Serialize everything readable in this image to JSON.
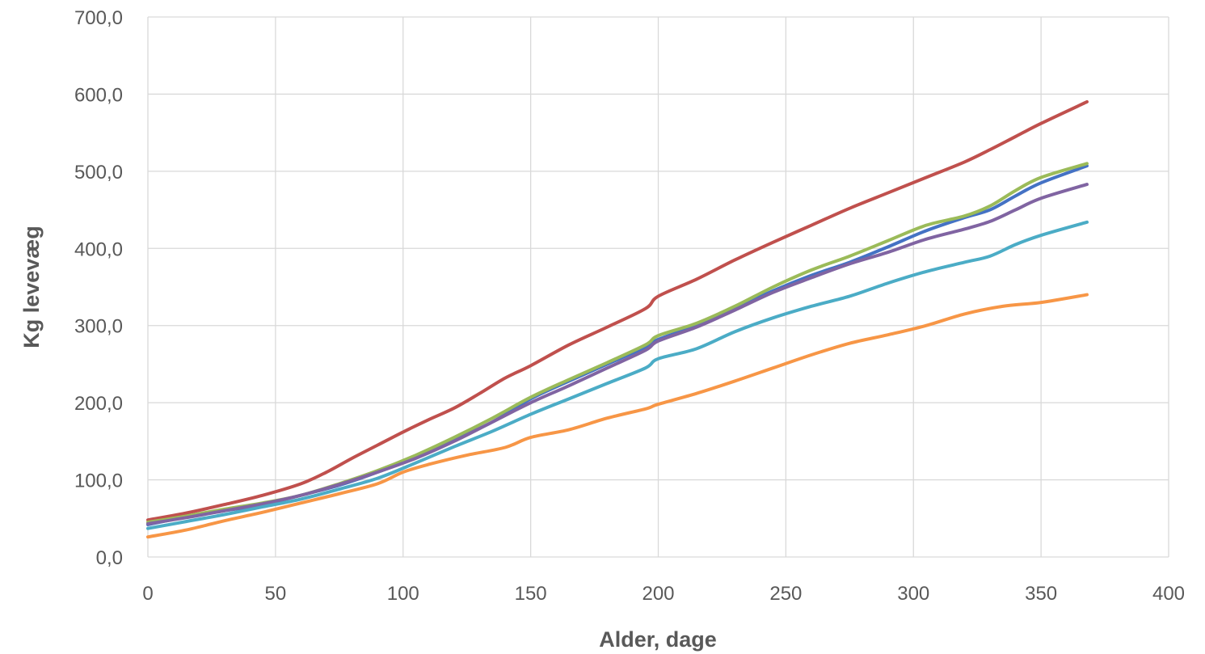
{
  "chart_data": {
    "type": "line",
    "title": "",
    "xlabel": "Alder, dage",
    "ylabel": "Kg levevæg",
    "xlim": [
      0,
      400
    ],
    "ylim": [
      0,
      700
    ],
    "x_ticks": [
      0,
      50,
      100,
      150,
      200,
      250,
      300,
      350,
      400
    ],
    "x_tick_labels": [
      "0",
      "50",
      "100",
      "150",
      "200",
      "250",
      "300",
      "350",
      "400"
    ],
    "y_ticks": [
      0,
      100,
      200,
      300,
      400,
      500,
      600,
      700
    ],
    "y_tick_labels": [
      "0,0",
      "100,0",
      "200,0",
      "300,0",
      "400,0",
      "500,0",
      "600,0",
      "700,0"
    ],
    "grid": true,
    "legend": "none",
    "series": [
      {
        "color": "#4472C4",
        "points": [
          [
            0,
            42
          ],
          [
            15,
            52
          ],
          [
            30,
            60
          ],
          [
            45,
            68
          ],
          [
            60,
            80
          ],
          [
            75,
            93
          ],
          [
            90,
            110
          ],
          [
            105,
            130
          ],
          [
            120,
            152
          ],
          [
            135,
            175
          ],
          [
            150,
            205
          ],
          [
            165,
            228
          ],
          [
            180,
            250
          ],
          [
            195,
            272
          ],
          [
            200,
            282
          ],
          [
            215,
            300
          ],
          [
            230,
            322
          ],
          [
            245,
            345
          ],
          [
            260,
            365
          ],
          [
            275,
            382
          ],
          [
            290,
            402
          ],
          [
            305,
            423
          ],
          [
            320,
            440
          ],
          [
            330,
            450
          ],
          [
            340,
            468
          ],
          [
            350,
            485
          ],
          [
            368,
            507
          ]
        ]
      },
      {
        "color": "#C0504D",
        "points": [
          [
            0,
            48
          ],
          [
            15,
            57
          ],
          [
            30,
            68
          ],
          [
            45,
            80
          ],
          [
            60,
            95
          ],
          [
            70,
            110
          ],
          [
            80,
            128
          ],
          [
            90,
            145
          ],
          [
            100,
            162
          ],
          [
            110,
            178
          ],
          [
            120,
            193
          ],
          [
            130,
            212
          ],
          [
            140,
            232
          ],
          [
            150,
            248
          ],
          [
            165,
            275
          ],
          [
            180,
            298
          ],
          [
            195,
            322
          ],
          [
            200,
            338
          ],
          [
            215,
            360
          ],
          [
            230,
            385
          ],
          [
            245,
            408
          ],
          [
            260,
            430
          ],
          [
            275,
            452
          ],
          [
            290,
            472
          ],
          [
            305,
            492
          ],
          [
            320,
            512
          ],
          [
            330,
            528
          ],
          [
            340,
            545
          ],
          [
            350,
            562
          ],
          [
            368,
            590
          ]
        ]
      },
      {
        "color": "#9BBB59",
        "points": [
          [
            0,
            45
          ],
          [
            15,
            53
          ],
          [
            30,
            62
          ],
          [
            45,
            70
          ],
          [
            60,
            80
          ],
          [
            75,
            95
          ],
          [
            90,
            112
          ],
          [
            105,
            132
          ],
          [
            120,
            155
          ],
          [
            135,
            180
          ],
          [
            150,
            207
          ],
          [
            165,
            230
          ],
          [
            180,
            252
          ],
          [
            195,
            275
          ],
          [
            200,
            287
          ],
          [
            215,
            303
          ],
          [
            230,
            325
          ],
          [
            245,
            350
          ],
          [
            260,
            372
          ],
          [
            275,
            390
          ],
          [
            290,
            410
          ],
          [
            305,
            430
          ],
          [
            320,
            442
          ],
          [
            330,
            455
          ],
          [
            340,
            475
          ],
          [
            350,
            492
          ],
          [
            368,
            510
          ]
        ]
      },
      {
        "color": "#8064A2",
        "points": [
          [
            0,
            43
          ],
          [
            15,
            51
          ],
          [
            30,
            60
          ],
          [
            45,
            69
          ],
          [
            60,
            80
          ],
          [
            75,
            94
          ],
          [
            90,
            110
          ],
          [
            105,
            128
          ],
          [
            120,
            150
          ],
          [
            135,
            175
          ],
          [
            150,
            200
          ],
          [
            165,
            222
          ],
          [
            180,
            245
          ],
          [
            195,
            268
          ],
          [
            200,
            280
          ],
          [
            215,
            298
          ],
          [
            230,
            320
          ],
          [
            245,
            343
          ],
          [
            260,
            362
          ],
          [
            275,
            380
          ],
          [
            290,
            395
          ],
          [
            305,
            412
          ],
          [
            320,
            425
          ],
          [
            330,
            435
          ],
          [
            340,
            450
          ],
          [
            350,
            465
          ],
          [
            368,
            483
          ]
        ]
      },
      {
        "color": "#4BACC6",
        "points": [
          [
            0,
            37
          ],
          [
            15,
            46
          ],
          [
            30,
            55
          ],
          [
            45,
            65
          ],
          [
            60,
            75
          ],
          [
            75,
            88
          ],
          [
            90,
            102
          ],
          [
            105,
            122
          ],
          [
            120,
            143
          ],
          [
            135,
            163
          ],
          [
            150,
            185
          ],
          [
            165,
            205
          ],
          [
            180,
            225
          ],
          [
            195,
            245
          ],
          [
            200,
            257
          ],
          [
            215,
            270
          ],
          [
            230,
            292
          ],
          [
            245,
            310
          ],
          [
            260,
            325
          ],
          [
            275,
            338
          ],
          [
            290,
            355
          ],
          [
            305,
            370
          ],
          [
            320,
            382
          ],
          [
            330,
            390
          ],
          [
            340,
            405
          ],
          [
            350,
            417
          ],
          [
            368,
            434
          ]
        ]
      },
      {
        "color": "#F79646",
        "points": [
          [
            0,
            26
          ],
          [
            15,
            35
          ],
          [
            30,
            47
          ],
          [
            45,
            58
          ],
          [
            60,
            70
          ],
          [
            75,
            82
          ],
          [
            90,
            95
          ],
          [
            100,
            110
          ],
          [
            110,
            120
          ],
          [
            125,
            132
          ],
          [
            140,
            142
          ],
          [
            150,
            155
          ],
          [
            165,
            165
          ],
          [
            180,
            180
          ],
          [
            195,
            192
          ],
          [
            200,
            198
          ],
          [
            215,
            212
          ],
          [
            230,
            228
          ],
          [
            245,
            245
          ],
          [
            260,
            262
          ],
          [
            275,
            277
          ],
          [
            290,
            288
          ],
          [
            305,
            300
          ],
          [
            320,
            315
          ],
          [
            335,
            325
          ],
          [
            350,
            330
          ],
          [
            368,
            340
          ]
        ]
      }
    ]
  }
}
